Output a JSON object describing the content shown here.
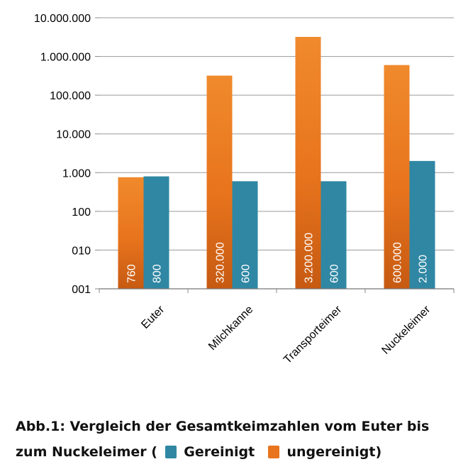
{
  "chart_data": {
    "type": "bar",
    "scale": "log",
    "categories": [
      "Euter",
      "Milchkanne",
      "Transporteimer",
      "Nuckeleimer"
    ],
    "series": [
      {
        "name": "ungereinigt",
        "color": "#e8741d",
        "values": [
          760,
          320000,
          3200000,
          600000
        ],
        "labels": [
          "760",
          "320.000",
          "3.200.000",
          "600.000"
        ]
      },
      {
        "name": "Gereinigt",
        "color": "#2f87a3",
        "values": [
          800,
          600,
          600,
          2000
        ],
        "labels": [
          "800",
          "600",
          "600",
          "2.000"
        ]
      }
    ],
    "ylim": [
      1,
      10000000
    ],
    "yticks": [
      1,
      10,
      100,
      1000,
      10000,
      100000,
      1000000,
      10000000
    ],
    "ytick_labels": [
      "001",
      "010",
      "100",
      "1.000",
      "10.000",
      "100.000",
      "1.000.000",
      "10.000.000"
    ],
    "grid": true
  },
  "caption": {
    "line1": "Abb.1: Vergleich der Gesamtkeimzahlen  vom Euter bis",
    "line2_start": "zum Nuckeleimer (",
    "legend_clean": "Gereinigt",
    "legend_dirty": "ungereinigt)"
  }
}
